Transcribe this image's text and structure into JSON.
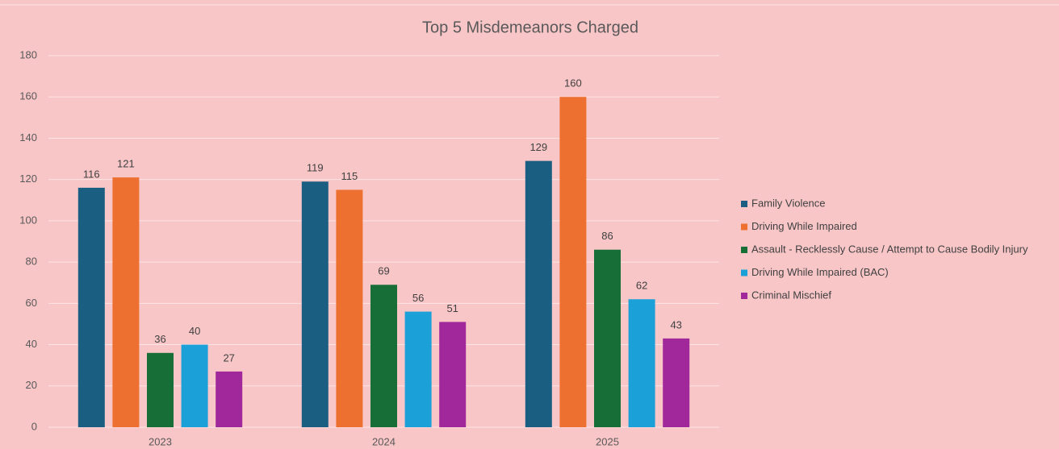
{
  "chart_data": {
    "type": "bar",
    "title": "Top 5 Misdemeanors Charged",
    "categories": [
      "2023",
      "2024",
      "2025"
    ],
    "series": [
      {
        "name": "Family Violence",
        "color": "#1a5f82",
        "values": [
          116,
          119,
          129
        ]
      },
      {
        "name": "Driving While Impaired",
        "color": "#ee7030",
        "values": [
          121,
          115,
          160
        ]
      },
      {
        "name": "Assault - Recklessly Cause / Attempt to Cause Bodily Injury",
        "color": "#176f37",
        "values": [
          36,
          69,
          86
        ]
      },
      {
        "name": "Driving While Impaired (BAC)",
        "color": "#1ba0d8",
        "values": [
          40,
          56,
          62
        ]
      },
      {
        "name": "Criminal Mischief",
        "color": "#a0289a",
        "values": [
          27,
          51,
          43
        ]
      }
    ],
    "ylim": [
      0,
      180
    ],
    "yticks": [
      0,
      20,
      40,
      60,
      80,
      100,
      120,
      140,
      160,
      180
    ],
    "grid": true,
    "legend": "right"
  }
}
